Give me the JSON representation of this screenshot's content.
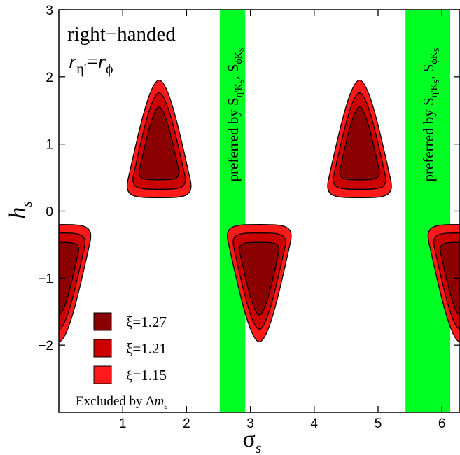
{
  "chart_data": {
    "type": "contour",
    "title": "",
    "xlabel_main": "σ",
    "xlabel_sub": "s",
    "ylabel_main": "h",
    "ylabel_sub": "s",
    "xlim": [
      0,
      6.283
    ],
    "ylim": [
      -3,
      3
    ],
    "x_ticks": [
      1,
      2,
      3,
      4,
      5,
      6
    ],
    "y_ticks": [
      3,
      2,
      1,
      0,
      -1,
      -2
    ],
    "x_tick_labels": [
      "1",
      "2",
      "3",
      "4",
      "5",
      "6"
    ],
    "y_tick_labels": [
      "3",
      "2",
      "1",
      "0",
      "−1",
      "−2"
    ],
    "annotation": {
      "line1": "right−handed",
      "r_eta": "r",
      "r_eta_sub": "η'",
      "equals": "=",
      "r_phi": "r",
      "r_phi_sub": "ϕ"
    },
    "bands": [
      {
        "x_range": [
          2.52,
          2.92
        ],
        "color": "#00ff22",
        "label": "preferred by S",
        "s1_sub": "η'K",
        "s1_subsub": "S",
        "sep": ", S",
        "s2_sub": "ϕK",
        "s2_subsub": "S"
      },
      {
        "x_range": [
          5.43,
          6.13
        ],
        "color": "#00ff22",
        "label": "preferred by S",
        "s1_sub": "η'K",
        "s1_subsub": "S",
        "sep": ", S",
        "s2_sub": "ϕK",
        "s2_subsub": "S"
      }
    ],
    "regions": [
      {
        "center": [
          1.57,
          0.9
        ],
        "orientation": "up"
      },
      {
        "center": [
          4.71,
          0.9
        ],
        "orientation": "up"
      },
      {
        "center": [
          3.14,
          -0.9
        ],
        "orientation": "down"
      },
      {
        "center": [
          0.0,
          -0.9
        ],
        "orientation": "down"
      },
      {
        "center": [
          6.283,
          -0.9
        ],
        "orientation": "down"
      }
    ],
    "series": [
      {
        "name": "ξ=1.27",
        "color": "#8b0000",
        "scale": 0.62
      },
      {
        "name": "ξ=1.21",
        "color": "#cc0000",
        "scale": 0.82
      },
      {
        "name": "ξ=1.15",
        "color": "#ff1a1a",
        "scale": 1.0
      }
    ],
    "legend_position": "bottom-left",
    "legend_note_text": "Excluded by ",
    "legend_note_delta": "Δ",
    "legend_note_m": "m",
    "legend_note_sub": "s",
    "grid": false
  }
}
